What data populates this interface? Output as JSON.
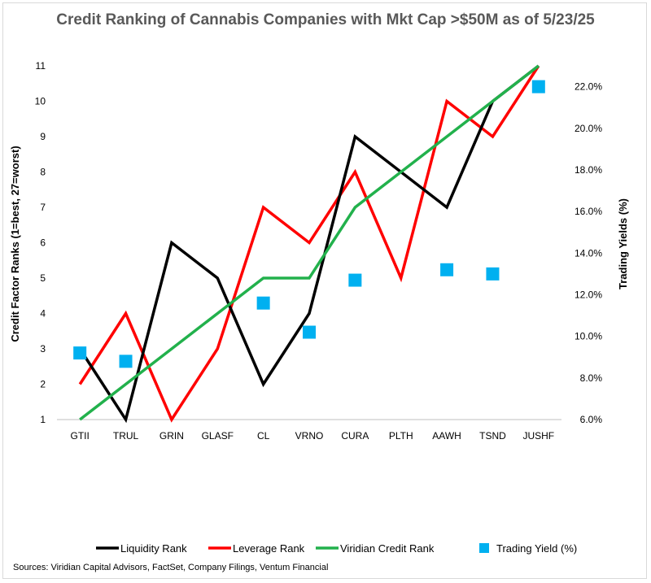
{
  "chart_data": {
    "type": "line",
    "title": "Credit Ranking of Cannabis Companies with Mkt Cap >$50M as of 5/23/25",
    "categories": [
      "GTII",
      "TRUL",
      "GRIN",
      "GLASF",
      "CL",
      "VRNO",
      "CURA",
      "PLTH",
      "AAWH",
      "TSND",
      "JUSHF"
    ],
    "y_left": {
      "label": "Credit Factor Ranks (1=best, 27=worst)",
      "range": [
        1,
        11
      ],
      "ticks": [
        "1",
        "2",
        "3",
        "4",
        "5",
        "6",
        "7",
        "8",
        "9",
        "10",
        "11"
      ]
    },
    "y_right": {
      "label": "Trading Yields (%)",
      "range": [
        6.0,
        23.0
      ],
      "ticks": [
        "6.0%",
        "8.0%",
        "10.0%",
        "12.0%",
        "14.0%",
        "16.0%",
        "18.0%",
        "20.0%",
        "22.0%"
      ]
    },
    "series": [
      {
        "name": "Liquidity Rank",
        "axis": "left",
        "kind": "line",
        "color": "#000000",
        "values": [
          3,
          1,
          6,
          5,
          2,
          4,
          9,
          8,
          7,
          10,
          11
        ]
      },
      {
        "name": "Leverage Rank",
        "axis": "left",
        "kind": "line",
        "color": "#ff0000",
        "values": [
          2,
          4,
          1,
          3,
          7,
          6,
          8,
          5,
          10,
          9,
          11
        ]
      },
      {
        "name": "Viridian Credit Rank",
        "axis": "left",
        "kind": "line",
        "color": "#22b14c",
        "values": [
          1,
          2,
          3,
          4,
          5,
          5,
          7,
          8,
          9,
          10,
          11
        ]
      },
      {
        "name": "Trading Yield (%)",
        "axis": "right",
        "kind": "scatter",
        "color": "#00b0f0",
        "values": [
          9.2,
          8.8,
          null,
          null,
          11.6,
          10.2,
          12.7,
          null,
          13.2,
          13.0,
          22.0
        ]
      }
    ],
    "legend": "bottom",
    "grid": false
  },
  "source": "Sources: Viridian Capital Advisors, FactSet, Company Filings, Ventum Financial"
}
